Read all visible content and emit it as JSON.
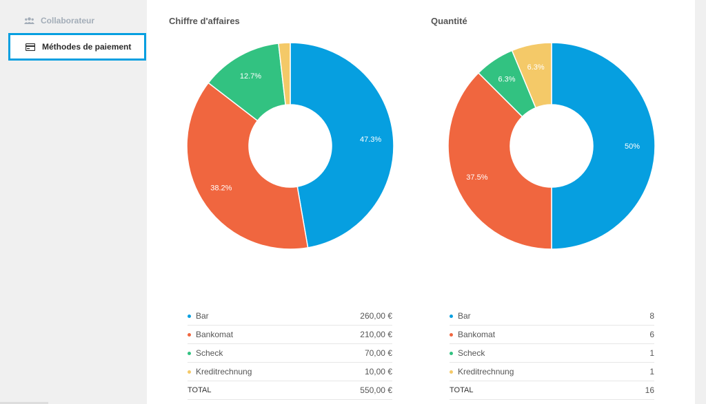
{
  "sidebar": {
    "items": [
      {
        "label": "Collaborateur",
        "icon": "users-icon"
      },
      {
        "label": "Méthodes de paiement",
        "icon": "credit-card-icon",
        "active": true
      }
    ]
  },
  "colors": {
    "Bar": "#069fe0",
    "Bankomat": "#f0663f",
    "Scheck": "#32c281",
    "Kreditrechnung": "#f4c968",
    "accent": "#069fe0"
  },
  "chart_data": [
    {
      "type": "pie",
      "title": "Chiffre d'affaires",
      "categories": [
        "Bar",
        "Bankomat",
        "Scheck",
        "Kreditrechnung"
      ],
      "values": [
        260,
        210,
        70,
        10
      ],
      "percent_labels": [
        "47.3%",
        "38.2%",
        "12.7%",
        ""
      ],
      "donut": true,
      "legend": {
        "rows": [
          {
            "label": "Bar",
            "value": "260,00 €"
          },
          {
            "label": "Bankomat",
            "value": "210,00 €"
          },
          {
            "label": "Scheck",
            "value": "70,00 €"
          },
          {
            "label": "Kreditrechnung",
            "value": "10,00 €"
          }
        ],
        "total_label": "TOTAL",
        "total_value": "550,00 €"
      }
    },
    {
      "type": "pie",
      "title": "Quantité",
      "categories": [
        "Bar",
        "Bankomat",
        "Scheck",
        "Kreditrechnung"
      ],
      "values": [
        8,
        6,
        1,
        1
      ],
      "percent_labels": [
        "50%",
        "37.5%",
        "6.3%",
        "6.3%"
      ],
      "donut": true,
      "legend": {
        "rows": [
          {
            "label": "Bar",
            "value": "8"
          },
          {
            "label": "Bankomat",
            "value": "6"
          },
          {
            "label": "Scheck",
            "value": "1"
          },
          {
            "label": "Kreditrechnung",
            "value": "1"
          }
        ],
        "total_label": "TOTAL",
        "total_value": "16"
      }
    }
  ]
}
